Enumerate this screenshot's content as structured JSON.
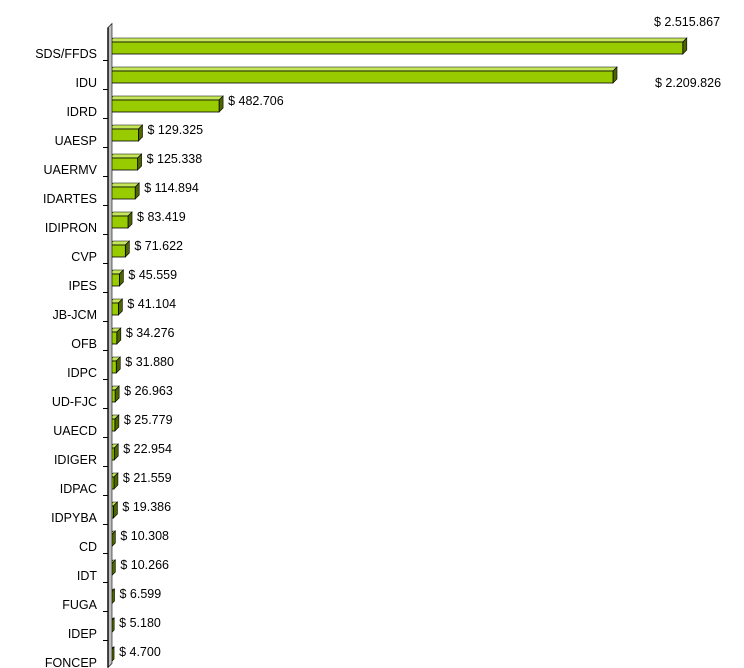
{
  "chart_data": {
    "type": "bar",
    "orientation": "horizontal",
    "bar_style": "3d",
    "grid": false,
    "legend": "none",
    "xlim": [
      0,
      2600000
    ],
    "colors": {
      "bar_face": "#99cc00",
      "bar_side": "#4d6600",
      "bar_edge": "#000000",
      "axis": "#000000"
    },
    "categories": [
      "SDS/FFDS",
      "IDU",
      "IDRD",
      "UAESP",
      "UAERMV",
      "IDARTES",
      "IDIPRON",
      "CVP",
      "IPES",
      "JB-JCM",
      "OFB",
      "IDPC",
      "UD-FJC",
      "UAECD",
      "IDIGER",
      "IDPAC",
      "IDPYBA",
      "CD",
      "IDT",
      "FUGA",
      "IDEP",
      "FONCEP"
    ],
    "values": [
      2515867,
      2209826,
      482706,
      129325,
      125338,
      114894,
      83419,
      71622,
      45559,
      41104,
      34276,
      31880,
      26963,
      25779,
      22954,
      21559,
      19386,
      10308,
      10266,
      6599,
      5180,
      4700
    ],
    "labels": [
      "$ 2.515.867",
      "$ 2.209.826",
      "$ 482.706",
      "$ 129.325",
      "$ 125.338",
      "$ 114.894",
      "$ 83.419",
      "$ 71.622",
      "$ 45.559",
      "$ 41.104",
      "$ 34.276",
      "$ 31.880",
      "$ 26.963",
      "$ 25.779",
      "$ 22.954",
      "$ 21.559",
      "$ 19.386",
      "$ 10.308",
      "$ 10.266",
      "$ 6.599",
      "$ 5.180",
      "$ 4.700"
    ]
  }
}
